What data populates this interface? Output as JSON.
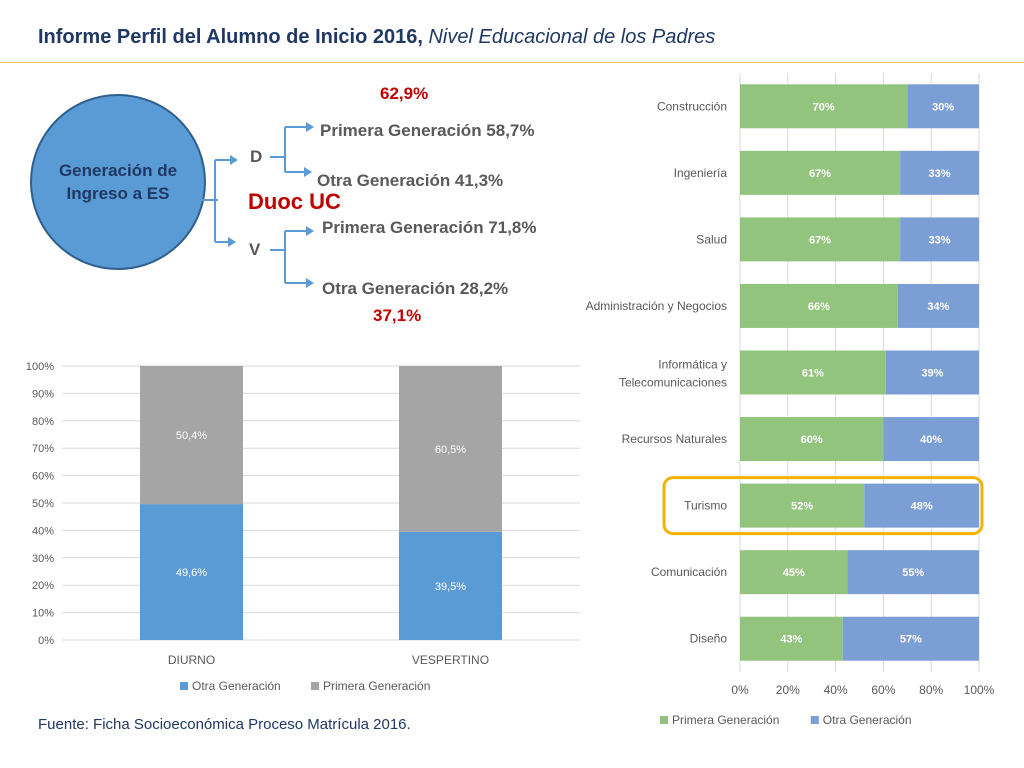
{
  "header": {
    "title_main": "Informe Perfil del Alumno de Inicio 2016,",
    "title_sub": "Nivel Educacional de los Padres"
  },
  "tree": {
    "root_label": "Generación de Ingreso a ES",
    "center_label": "Duoc UC",
    "d": {
      "label": "D",
      "total": "62,9%",
      "primera": "Primera Generación  58,7%",
      "otra": "Otra Generación  41,3%"
    },
    "v": {
      "label": "V",
      "total": "37,1%",
      "primera": "Primera Generación  71,8%",
      "otra": "Otra Generación  28,2%"
    }
  },
  "chart_data": [
    {
      "type": "bar",
      "stacked": true,
      "orientation": "vertical",
      "categories": [
        "DIURNO",
        "VESPERTINO"
      ],
      "series": [
        {
          "name": "Otra Generación",
          "values": [
            49.6,
            39.5
          ],
          "labels": [
            "49,6%",
            "39,5%"
          ],
          "color": "#5b9bd5"
        },
        {
          "name": "Primera Generación",
          "values": [
            50.4,
            60.5
          ],
          "labels": [
            "50,4%",
            "60,5%"
          ],
          "color": "#a5a5a5"
        }
      ],
      "ylim": [
        0,
        100
      ],
      "yticks": [
        "0%",
        "10%",
        "20%",
        "30%",
        "40%",
        "50%",
        "60%",
        "70%",
        "80%",
        "90%",
        "100%"
      ],
      "grid": true,
      "legend": "bottom"
    },
    {
      "type": "bar",
      "stacked": true,
      "orientation": "horizontal",
      "categories": [
        "Construcción",
        "Ingeniería",
        "Salud",
        "Administración y Negocios",
        "Informática y Telecomunicaciones",
        "Recursos Naturales",
        "Turismo",
        "Comunicación",
        "Diseño"
      ],
      "series": [
        {
          "name": "Primera Generación",
          "values": [
            70,
            67,
            67,
            66,
            61,
            60,
            52,
            45,
            43
          ],
          "color": "#93c47d"
        },
        {
          "name": "Otra Generación",
          "values": [
            30,
            33,
            33,
            34,
            39,
            40,
            48,
            55,
            57
          ],
          "color": "#7b9fd4"
        }
      ],
      "xlim": [
        0,
        100
      ],
      "xticks": [
        "0%",
        "20%",
        "40%",
        "60%",
        "80%",
        "100%"
      ],
      "grid": true,
      "legend": "bottom",
      "highlight_category": "Turismo",
      "highlight_color": "#f0b400"
    }
  ],
  "footer": {
    "source": "Fuente: Ficha Socioeconómica Proceso Matrícula 2016."
  }
}
